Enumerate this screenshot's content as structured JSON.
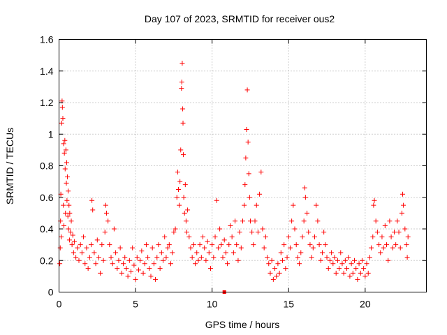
{
  "chart_data": {
    "type": "scatter",
    "title": "Day 107 of 2023, SRMTID for receiver ous2",
    "xlabel": "GPS time / hours",
    "ylabel": "SRMTID / TECUs",
    "xlim": [
      0,
      24
    ],
    "ylim": [
      0,
      1.6
    ],
    "xticks": [
      0,
      5,
      10,
      15,
      20
    ],
    "yticks": [
      0,
      0.2,
      0.4,
      0.6,
      0.8,
      1,
      1.2,
      1.4,
      1.6
    ],
    "ytick_labels": [
      "0",
      "0.2",
      "0.4",
      "0.6",
      "0.8",
      "1",
      "1.2",
      "1.4",
      "1.6"
    ],
    "grid": true,
    "marker": "+",
    "color": "#ff0000",
    "series": [
      {
        "name": "SRMTID",
        "points": [
          [
            0.05,
            0.18
          ],
          [
            0.08,
            0.28
          ],
          [
            0.1,
            0.45
          ],
          [
            0.12,
            0.62
          ],
          [
            0.15,
            0.35
          ],
          [
            0.18,
            1.07
          ],
          [
            0.2,
            1.21
          ],
          [
            0.22,
            1.17
          ],
          [
            0.25,
            1.1
          ],
          [
            0.28,
            0.55
          ],
          [
            0.3,
            0.94
          ],
          [
            0.32,
            0.42
          ],
          [
            0.35,
            0.88
          ],
          [
            0.38,
            0.96
          ],
          [
            0.4,
            0.78
          ],
          [
            0.42,
            0.5
          ],
          [
            0.45,
            0.9
          ],
          [
            0.48,
            0.69
          ],
          [
            0.5,
            0.82
          ],
          [
            0.52,
            0.58
          ],
          [
            0.55,
            0.73
          ],
          [
            0.58,
            0.48
          ],
          [
            0.6,
            0.64
          ],
          [
            0.62,
            0.4
          ],
          [
            0.65,
            0.55
          ],
          [
            0.68,
            0.33
          ],
          [
            0.7,
            0.5
          ],
          [
            0.75,
            0.38
          ],
          [
            0.8,
            0.45
          ],
          [
            0.85,
            0.3
          ],
          [
            0.9,
            0.36
          ],
          [
            0.95,
            0.25
          ],
          [
            1.0,
            0.32
          ],
          [
            1.1,
            0.22
          ],
          [
            1.2,
            0.28
          ],
          [
            1.3,
            0.2
          ],
          [
            1.4,
            0.3
          ],
          [
            1.5,
            0.25
          ],
          [
            1.6,
            0.35
          ],
          [
            1.7,
            0.18
          ],
          [
            1.8,
            0.28
          ],
          [
            1.9,
            0.15
          ],
          [
            2.0,
            0.22
          ],
          [
            2.1,
            0.3
          ],
          [
            2.15,
            0.58
          ],
          [
            2.2,
            0.52
          ],
          [
            2.3,
            0.25
          ],
          [
            2.4,
            0.18
          ],
          [
            2.5,
            0.33
          ],
          [
            2.6,
            0.22
          ],
          [
            2.7,
            0.12
          ],
          [
            2.8,
            0.3
          ],
          [
            2.9,
            0.2
          ],
          [
            3.0,
            0.38
          ],
          [
            3.05,
            0.55
          ],
          [
            3.1,
            0.5
          ],
          [
            3.2,
            0.45
          ],
          [
            3.3,
            0.3
          ],
          [
            3.4,
            0.22
          ],
          [
            3.5,
            0.18
          ],
          [
            3.6,
            0.4
          ],
          [
            3.7,
            0.25
          ],
          [
            3.8,
            0.15
          ],
          [
            3.9,
            0.2
          ],
          [
            4.0,
            0.28
          ],
          [
            4.1,
            0.12
          ],
          [
            4.2,
            0.18
          ],
          [
            4.3,
            0.22
          ],
          [
            4.4,
            0.15
          ],
          [
            4.5,
            0.1
          ],
          [
            4.6,
            0.2
          ],
          [
            4.7,
            0.13
          ],
          [
            4.8,
            0.28
          ],
          [
            4.9,
            0.17
          ],
          [
            5.0,
            0.08
          ],
          [
            5.1,
            0.22
          ],
          [
            5.2,
            0.14
          ],
          [
            5.3,
            0.2
          ],
          [
            5.4,
            0.26
          ],
          [
            5.5,
            0.12
          ],
          [
            5.6,
            0.18
          ],
          [
            5.7,
            0.3
          ],
          [
            5.8,
            0.22
          ],
          [
            5.9,
            0.15
          ],
          [
            6.0,
            0.1
          ],
          [
            6.1,
            0.28
          ],
          [
            6.2,
            0.18
          ],
          [
            6.3,
            0.08
          ],
          [
            6.4,
            0.22
          ],
          [
            6.5,
            0.3
          ],
          [
            6.6,
            0.15
          ],
          [
            6.7,
            0.25
          ],
          [
            6.8,
            0.2
          ],
          [
            6.9,
            0.35
          ],
          [
            7.0,
            0.22
          ],
          [
            7.1,
            0.28
          ],
          [
            7.2,
            0.3
          ],
          [
            7.3,
            0.18
          ],
          [
            7.4,
            0.25
          ],
          [
            7.5,
            0.38
          ],
          [
            7.6,
            0.4
          ],
          [
            7.7,
            0.6
          ],
          [
            7.75,
            0.76
          ],
          [
            7.8,
            0.65
          ],
          [
            7.85,
            0.55
          ],
          [
            7.9,
            0.7
          ],
          [
            7.95,
            0.9
          ],
          [
            8.0,
            1.29
          ],
          [
            8.02,
            1.33
          ],
          [
            8.05,
            1.45
          ],
          [
            8.08,
            1.16
          ],
          [
            8.1,
            1.07
          ],
          [
            8.12,
            0.87
          ],
          [
            8.15,
            0.6
          ],
          [
            8.2,
            0.5
          ],
          [
            8.25,
            0.68
          ],
          [
            8.3,
            0.45
          ],
          [
            8.35,
            0.38
          ],
          [
            8.4,
            0.52
          ],
          [
            8.5,
            0.35
          ],
          [
            8.6,
            0.28
          ],
          [
            8.7,
            0.22
          ],
          [
            8.8,
            0.3
          ],
          [
            8.9,
            0.18
          ],
          [
            9.0,
            0.25
          ],
          [
            9.1,
            0.2
          ],
          [
            9.2,
            0.3
          ],
          [
            9.3,
            0.22
          ],
          [
            9.4,
            0.35
          ],
          [
            9.5,
            0.28
          ],
          [
            9.6,
            0.2
          ],
          [
            9.7,
            0.32
          ],
          [
            9.8,
            0.25
          ],
          [
            9.9,
            0.15
          ],
          [
            10.0,
            0.3
          ],
          [
            10.1,
            0.22
          ],
          [
            10.2,
            0.35
          ],
          [
            10.3,
            0.58
          ],
          [
            10.4,
            0.28
          ],
          [
            10.5,
            0.4
          ],
          [
            10.6,
            0.3
          ],
          [
            10.7,
            0.22
          ],
          [
            10.8,
            0.33
          ],
          [
            10.9,
            0.25
          ],
          [
            11.0,
            0.18
          ],
          [
            11.1,
            0.3
          ],
          [
            11.2,
            0.42
          ],
          [
            11.3,
            0.35
          ],
          [
            11.4,
            0.25
          ],
          [
            11.5,
            0.45
          ],
          [
            11.6,
            0.3
          ],
          [
            11.7,
            0.2
          ],
          [
            11.8,
            0.38
          ],
          [
            11.9,
            0.28
          ],
          [
            12.0,
            0.45
          ],
          [
            12.1,
            0.55
          ],
          [
            12.15,
            0.68
          ],
          [
            12.2,
            0.85
          ],
          [
            12.25,
            1.03
          ],
          [
            12.3,
            1.28
          ],
          [
            12.35,
            0.95
          ],
          [
            12.4,
            0.75
          ],
          [
            12.45,
            0.6
          ],
          [
            12.5,
            0.45
          ],
          [
            12.6,
            0.38
          ],
          [
            12.7,
            0.3
          ],
          [
            12.8,
            0.45
          ],
          [
            12.9,
            0.55
          ],
          [
            13.0,
            0.38
          ],
          [
            13.1,
            0.62
          ],
          [
            13.2,
            0.76
          ],
          [
            13.3,
            0.4
          ],
          [
            13.4,
            0.28
          ],
          [
            13.5,
            0.35
          ],
          [
            13.6,
            0.22
          ],
          [
            13.7,
            0.18
          ],
          [
            13.8,
            0.12
          ],
          [
            13.9,
            0.2
          ],
          [
            14.0,
            0.08
          ],
          [
            14.1,
            0.15
          ],
          [
            14.2,
            0.1
          ],
          [
            14.3,
            0.18
          ],
          [
            14.4,
            0.12
          ],
          [
            14.5,
            0.25
          ],
          [
            14.6,
            0.2
          ],
          [
            14.7,
            0.3
          ],
          [
            14.8,
            0.15
          ],
          [
            14.9,
            0.22
          ],
          [
            15.0,
            0.35
          ],
          [
            15.1,
            0.28
          ],
          [
            15.2,
            0.45
          ],
          [
            15.3,
            0.55
          ],
          [
            15.4,
            0.4
          ],
          [
            15.5,
            0.3
          ],
          [
            15.6,
            0.22
          ],
          [
            15.7,
            0.18
          ],
          [
            15.8,
            0.25
          ],
          [
            15.9,
            0.35
          ],
          [
            16.0,
            0.45
          ],
          [
            16.05,
            0.66
          ],
          [
            16.1,
            0.6
          ],
          [
            16.2,
            0.5
          ],
          [
            16.3,
            0.38
          ],
          [
            16.4,
            0.3
          ],
          [
            16.5,
            0.22
          ],
          [
            16.6,
            0.28
          ],
          [
            16.7,
            0.35
          ],
          [
            16.8,
            0.55
          ],
          [
            16.9,
            0.45
          ],
          [
            17.0,
            0.3
          ],
          [
            17.1,
            0.2
          ],
          [
            17.2,
            0.25
          ],
          [
            17.3,
            0.38
          ],
          [
            17.4,
            0.3
          ],
          [
            17.5,
            0.22
          ],
          [
            17.6,
            0.15
          ],
          [
            17.7,
            0.2
          ],
          [
            17.8,
            0.25
          ],
          [
            17.9,
            0.18
          ],
          [
            18.0,
            0.22
          ],
          [
            18.1,
            0.12
          ],
          [
            18.2,
            0.2
          ],
          [
            18.3,
            0.15
          ],
          [
            18.4,
            0.25
          ],
          [
            18.5,
            0.18
          ],
          [
            18.6,
            0.12
          ],
          [
            18.7,
            0.2
          ],
          [
            18.8,
            0.15
          ],
          [
            18.9,
            0.22
          ],
          [
            19.0,
            0.1
          ],
          [
            19.1,
            0.18
          ],
          [
            19.2,
            0.12
          ],
          [
            19.3,
            0.2
          ],
          [
            19.4,
            0.15
          ],
          [
            19.5,
            0.08
          ],
          [
            19.6,
            0.18
          ],
          [
            19.7,
            0.12
          ],
          [
            19.8,
            0.2
          ],
          [
            19.9,
            0.15
          ],
          [
            20.0,
            0.1
          ],
          [
            20.1,
            0.18
          ],
          [
            20.2,
            0.12
          ],
          [
            20.3,
            0.22
          ],
          [
            20.4,
            0.28
          ],
          [
            20.5,
            0.35
          ],
          [
            20.55,
            0.55
          ],
          [
            20.6,
            0.58
          ],
          [
            20.7,
            0.45
          ],
          [
            20.8,
            0.38
          ],
          [
            20.9,
            0.3
          ],
          [
            21.0,
            0.25
          ],
          [
            21.1,
            0.35
          ],
          [
            21.2,
            0.28
          ],
          [
            21.3,
            0.42
          ],
          [
            21.4,
            0.3
          ],
          [
            21.5,
            0.2
          ],
          [
            21.6,
            0.45
          ],
          [
            21.7,
            0.35
          ],
          [
            21.8,
            0.28
          ],
          [
            21.9,
            0.38
          ],
          [
            22.0,
            0.3
          ],
          [
            22.1,
            0.45
          ],
          [
            22.2,
            0.38
          ],
          [
            22.3,
            0.28
          ],
          [
            22.4,
            0.5
          ],
          [
            22.45,
            0.62
          ],
          [
            22.5,
            0.55
          ],
          [
            22.6,
            0.4
          ],
          [
            22.7,
            0.3
          ],
          [
            22.75,
            0.22
          ],
          [
            22.8,
            0.35
          ]
        ]
      }
    ],
    "annotations": [
      {
        "type": "marker",
        "shape": "square",
        "x": 10.8,
        "y": 0
      }
    ]
  }
}
